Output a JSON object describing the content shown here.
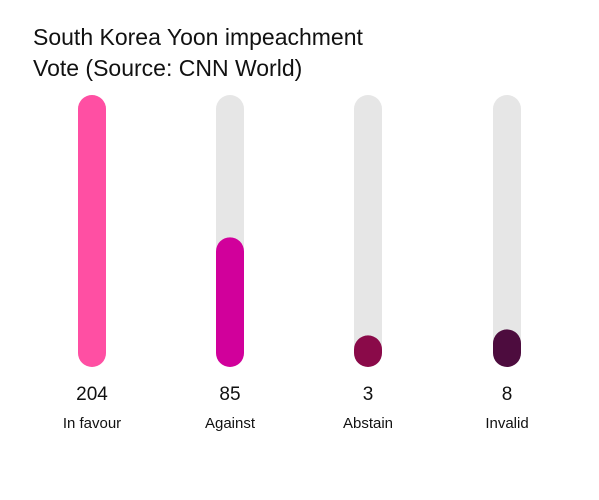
{
  "chart_data": {
    "type": "bar",
    "title_line1": "South Korea Yoon impeachment",
    "title_line2": "Vote (Source: CNN World)",
    "categories": [
      "In favour",
      "Against",
      "Abstain",
      "Invalid"
    ],
    "values": [
      204,
      85,
      3,
      8
    ],
    "ylim": [
      0,
      204
    ],
    "grid": false,
    "legend": "none",
    "colors": [
      "#ff4fa3",
      "#d1009b",
      "#8a0a49",
      "#4d0c3e"
    ],
    "track_color": "#e6e6e6"
  }
}
